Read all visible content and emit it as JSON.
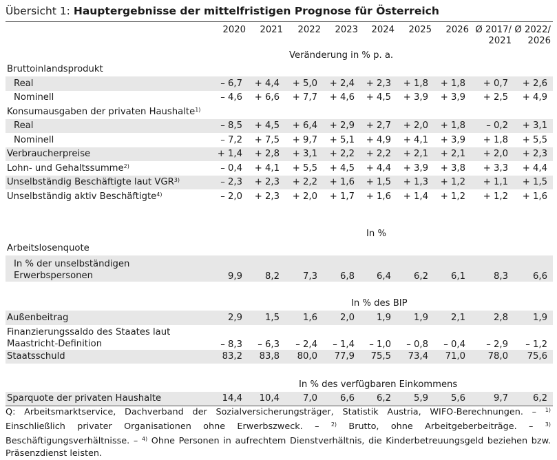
{
  "title": {
    "prefix": "Übersicht 1: ",
    "main": "Hauptergebnisse der mittelfristigen Prognose für Österreich"
  },
  "columns": [
    "2020",
    "2021",
    "2022",
    "2023",
    "2024",
    "2025",
    "2026",
    "Ø 2017/ 2021",
    "Ø 2022/ 2026"
  ],
  "units": {
    "change": "Veränderung in % p. a.",
    "percent": "In %",
    "gdp_share": "In % des BIP",
    "disposable": "In % des verfügbaren Einkommens"
  },
  "groups": {
    "gdp": "Bruttoinlandsprodukt",
    "consumption": "Konsumausgaben der privaten Haushalte",
    "unemployment": "Arbeitslosenquote"
  },
  "rows": {
    "gdp_real": {
      "label": "Real",
      "values": [
        "– 6,7",
        "+ 4,4",
        "+ 5,0",
        "+ 2,4",
        "+ 2,3",
        "+ 1,8",
        "+ 1,8",
        "+ 0,7",
        "+ 2,6"
      ]
    },
    "gdp_nominal": {
      "label": "Nominell",
      "values": [
        "– 4,6",
        "+ 6,6",
        "+ 7,7",
        "+ 4,6",
        "+ 4,5",
        "+ 3,9",
        "+ 3,9",
        "+ 2,5",
        "+ 4,9"
      ]
    },
    "cons_real": {
      "label": "Real",
      "values": [
        "– 8,5",
        "+ 4,5",
        "+ 6,4",
        "+ 2,9",
        "+ 2,7",
        "+ 2,0",
        "+ 1,8",
        "– 0,2",
        "+ 3,1"
      ]
    },
    "cons_nominal": {
      "label": "Nominell",
      "values": [
        "– 7,2",
        "+ 7,5",
        "+ 9,7",
        "+ 5,1",
        "+ 4,9",
        "+ 4,1",
        "+ 3,9",
        "+ 1,8",
        "+ 5,5"
      ]
    },
    "cpi": {
      "label": "Verbraucherpreise",
      "values": [
        "+ 1,4",
        "+ 2,8",
        "+ 3,1",
        "+ 2,2",
        "+ 2,2",
        "+ 2,1",
        "+ 2,1",
        "+ 2,0",
        "+ 2,3"
      ]
    },
    "wages": {
      "label": "Lohn- und Gehaltssumme",
      "values": [
        "– 0,4",
        "+ 4,1",
        "+ 5,5",
        "+ 4,5",
        "+ 4,4",
        "+ 3,9",
        "+ 3,8",
        "+ 3,3",
        "+ 4,4"
      ]
    },
    "employees_vgr": {
      "label": "Unselbständig Beschäftigte laut VGR",
      "values": [
        "– 2,3",
        "+ 2,3",
        "+ 2,2",
        "+ 1,6",
        "+ 1,5",
        "+ 1,3",
        "+ 1,2",
        "+ 1,1",
        "+ 1,5"
      ]
    },
    "employees_active": {
      "label": "Unselbständig aktiv Beschäftigte",
      "values": [
        "– 2,0",
        "+ 2,3",
        "+ 2,0",
        "+ 1,7",
        "+ 1,6",
        "+ 1,4",
        "+ 1,2",
        "+ 1,2",
        "+ 1,6"
      ]
    },
    "unemp_rate": {
      "label_line1": "In % der unselbständigen",
      "label_line2": "Erwerbspersonen",
      "values": [
        "9,9",
        "8,2",
        "7,3",
        "6,8",
        "6,4",
        "6,2",
        "6,1",
        "8,3",
        "6,6"
      ]
    },
    "trade_balance": {
      "label": "Außenbeitrag",
      "values": [
        "2,9",
        "1,5",
        "1,6",
        "2,0",
        "1,9",
        "1,9",
        "2,1",
        "2,8",
        "1,9"
      ]
    },
    "fiscal_balance": {
      "label_line1": "Finanzierungssaldo des Staates laut",
      "label_line2": "Maastricht-Definition",
      "values": [
        "– 8,3",
        "– 6,3",
        "– 2,4",
        "– 1,4",
        "– 1,0",
        "– 0,8",
        "– 0,4",
        "– 2,9",
        "– 1,2"
      ]
    },
    "debt": {
      "label": "Staatsschuld",
      "values": [
        "83,2",
        "83,8",
        "80,0",
        "77,9",
        "75,5",
        "73,4",
        "71,0",
        "78,0",
        "75,6"
      ]
    },
    "saving_rate": {
      "label": "Sparquote der privaten Haushalte",
      "values": [
        "14,4",
        "10,4",
        "7,0",
        "6,6",
        "6,2",
        "5,9",
        "5,6",
        "9,7",
        "6,2"
      ]
    }
  },
  "footnote_marks": {
    "f1": "1)",
    "f2": "2)",
    "f3": "3)",
    "f4": "4)"
  },
  "footnote": {
    "part1": "Q: Arbeitsmarktservice, Dachverband der Sozialversicherungsträger, Statistik Austria, WIFO-Berechnungen. – ",
    "m1": "1)",
    "part2": " Einschließlich privater Organisationen ohne Erwerbszweck. – ",
    "m2": "2)",
    "part3": " Brutto, ohne Arbeitgeberbeiträge. – ",
    "m3": "3)",
    "part4": " Beschäftigungsverhältnisse. – ",
    "m4": "4)",
    "part5": " Ohne Personen in aufrechtem Dienstverhältnis, die Kinderbetreuungsgeld beziehen bzw. Präsenzdienst leisten."
  }
}
